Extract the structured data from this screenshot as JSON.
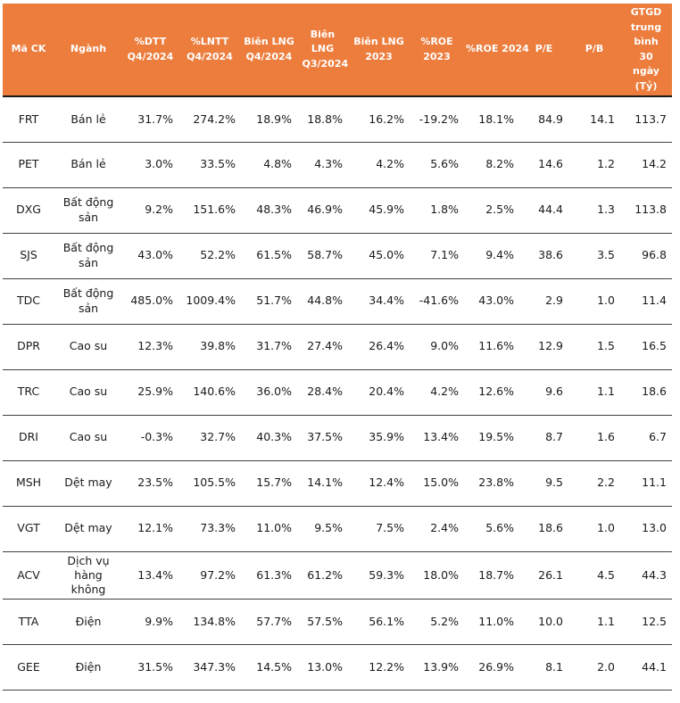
{
  "chart_data": {
    "type": "table",
    "title": "",
    "header_bg": "#EC7D3D",
    "header_text_color": "#FFFFFF",
    "body_text_color": "#1A1A1A",
    "row_divider_color": "#404040",
    "column_keys": [
      "ma-ck",
      "nganh",
      "pct-dtt-q4-2024",
      "pct-lntt-q4-2024",
      "bien-lng-q4-2024",
      "bien-lng-q3-2024",
      "bien-lng-2023",
      "pct-roe-2023",
      "pct-roe-2024",
      "pe",
      "pb",
      "gtgd-trung-binh-30-ngay"
    ],
    "columns": [
      "Mã CK",
      "Ngành",
      "%DTT Q4/2024",
      "%LNTT Q4/2024",
      "Biên LNG Q4/2024",
      "Biên LNG Q3/2024",
      "Biên LNG 2023",
      "%ROE 2023",
      "%ROE 2024",
      "P/E",
      "P/B",
      "GTGD trung bình 30 ngày (Tỷ)"
    ],
    "rows": [
      [
        "FRT",
        "Bán lẻ",
        "31.7%",
        "274.2%",
        "18.9%",
        "18.8%",
        "16.2%",
        "-19.2%",
        "18.1%",
        "84.9",
        "14.1",
        "113.7"
      ],
      [
        "PET",
        "Bán lẻ",
        "3.0%",
        "33.5%",
        "4.8%",
        "4.3%",
        "4.2%",
        "5.6%",
        "8.2%",
        "14.6",
        "1.2",
        "14.2"
      ],
      [
        "DXG",
        "Bất động sản",
        "9.2%",
        "151.6%",
        "48.3%",
        "46.9%",
        "45.9%",
        "1.8%",
        "2.5%",
        "44.4",
        "1.3",
        "113.8"
      ],
      [
        "SJS",
        "Bất động sản",
        "43.0%",
        "52.2%",
        "61.5%",
        "58.7%",
        "45.0%",
        "7.1%",
        "9.4%",
        "38.6",
        "3.5",
        "96.8"
      ],
      [
        "TDC",
        "Bất động sản",
        "485.0%",
        "1009.4%",
        "51.7%",
        "44.8%",
        "34.4%",
        "-41.6%",
        "43.0%",
        "2.9",
        "1.0",
        "11.4"
      ],
      [
        "DPR",
        "Cao su",
        "12.3%",
        "39.8%",
        "31.7%",
        "27.4%",
        "26.4%",
        "9.0%",
        "11.6%",
        "12.9",
        "1.5",
        "16.5"
      ],
      [
        "TRC",
        "Cao su",
        "25.9%",
        "140.6%",
        "36.0%",
        "28.4%",
        "20.4%",
        "4.2%",
        "12.6%",
        "9.6",
        "1.1",
        "18.6"
      ],
      [
        "DRI",
        "Cao su",
        "-0.3%",
        "32.7%",
        "40.3%",
        "37.5%",
        "35.9%",
        "13.4%",
        "19.5%",
        "8.7",
        "1.6",
        "6.7"
      ],
      [
        "MSH",
        "Dệt may",
        "23.5%",
        "105.5%",
        "15.7%",
        "14.1%",
        "12.4%",
        "15.0%",
        "23.8%",
        "9.5",
        "2.2",
        "11.1"
      ],
      [
        "VGT",
        "Dệt may",
        "12.1%",
        "73.3%",
        "11.0%",
        "9.5%",
        "7.5%",
        "2.4%",
        "5.6%",
        "18.6",
        "1.0",
        "13.0"
      ],
      [
        "ACV",
        "Dịch vụ hàng không",
        "13.4%",
        "97.2%",
        "61.3%",
        "61.2%",
        "59.3%",
        "18.0%",
        "18.7%",
        "26.1",
        "4.5",
        "44.3"
      ],
      [
        "TTA",
        "Điện",
        "9.9%",
        "134.8%",
        "57.7%",
        "57.5%",
        "56.1%",
        "5.2%",
        "11.0%",
        "10.0",
        "1.1",
        "12.5"
      ],
      [
        "GEE",
        "Điện",
        "31.5%",
        "347.3%",
        "14.5%",
        "13.0%",
        "12.2%",
        "13.9%",
        "26.9%",
        "8.1",
        "2.0",
        "44.1"
      ]
    ]
  }
}
